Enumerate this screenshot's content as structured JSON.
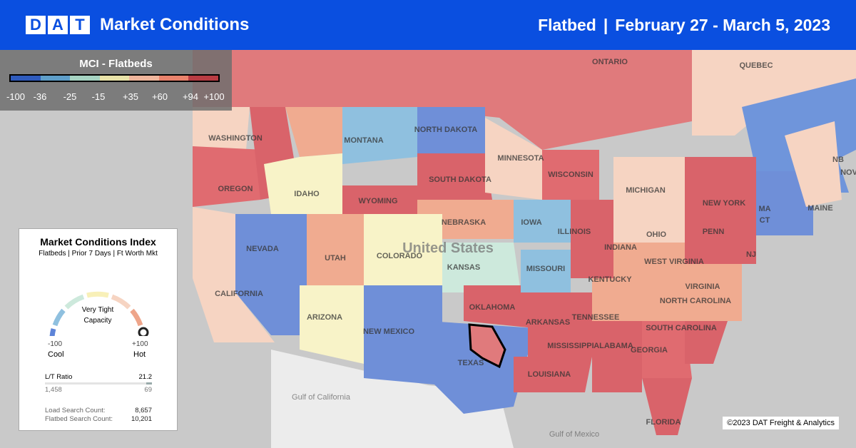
{
  "header": {
    "logo_letters": [
      "D",
      "A",
      "T"
    ],
    "title": "Market Conditions",
    "equipment": "Flatbed",
    "separator": "|",
    "date_range": "February 27 - March 5, 2023"
  },
  "legend": {
    "title": "MCI - Flatbeds",
    "colors": [
      "#2f5bbd",
      "#5e9ec9",
      "#a6d3c2",
      "#e8e2a8",
      "#efb59c",
      "#e9826c",
      "#b93c43"
    ],
    "ticks": [
      "-100",
      "-36",
      "-25",
      "-15",
      "+35",
      "+60",
      "+94",
      "+100"
    ]
  },
  "card": {
    "title": "Market Conditions Index",
    "subtitle": "Flatbeds | Prior 7 Days |  Ft Worth Mkt",
    "status_line1": "Very Tight",
    "status_line2": "Capacity",
    "min": "-100",
    "max": "+100",
    "min_label": "Cool",
    "max_label": "Hot",
    "gauge_value": 100,
    "lt_label": "L/T Ratio",
    "lt_value": "21.2",
    "loads": "1,458",
    "trucks": "69",
    "load_search_label": "Load Search Count:",
    "load_search_value": "8,657",
    "flatbed_search_label": "Flatbed Search Count:",
    "flatbed_search_value": "10,201"
  },
  "map": {
    "labels": [
      "ONTARIO",
      "QUEBEC",
      "WASHINGTON",
      "OREGON",
      "IDAHO",
      "MONTANA",
      "WYOMING",
      "NORTH DAKOTA",
      "SOUTH DAKOTA",
      "NEBRASKA",
      "NEVADA",
      "UTAH",
      "COLORADO",
      "KANSAS",
      "CALIFORNIA",
      "ARIZONA",
      "NEW MEXICO",
      "OKLAHOMA",
      "TEXAS",
      "MINNESOTA",
      "IOWA",
      "MISSOURI",
      "WISCONSIN",
      "ILLINOIS",
      "MICHIGAN",
      "INDIANA",
      "OHIO",
      "KENTUCKY",
      "TENNESSEE",
      "ARKANSAS",
      "LOUISIANA",
      "MISSISSIPPI",
      "ALABAMA",
      "GEORGIA",
      "FLORIDA",
      "SOUTH CAROLINA",
      "NORTH CAROLINA",
      "VIRGINIA",
      "WEST VIRGINIA",
      "PENN",
      "NEW YORK",
      "MAINE",
      "NJ",
      "CT",
      "MA",
      "NB",
      "NOV",
      "United States",
      "Gulf of California",
      "Gulf of Mexico"
    ]
  },
  "copyright": "©2023 DAT Freight & Analytics"
}
